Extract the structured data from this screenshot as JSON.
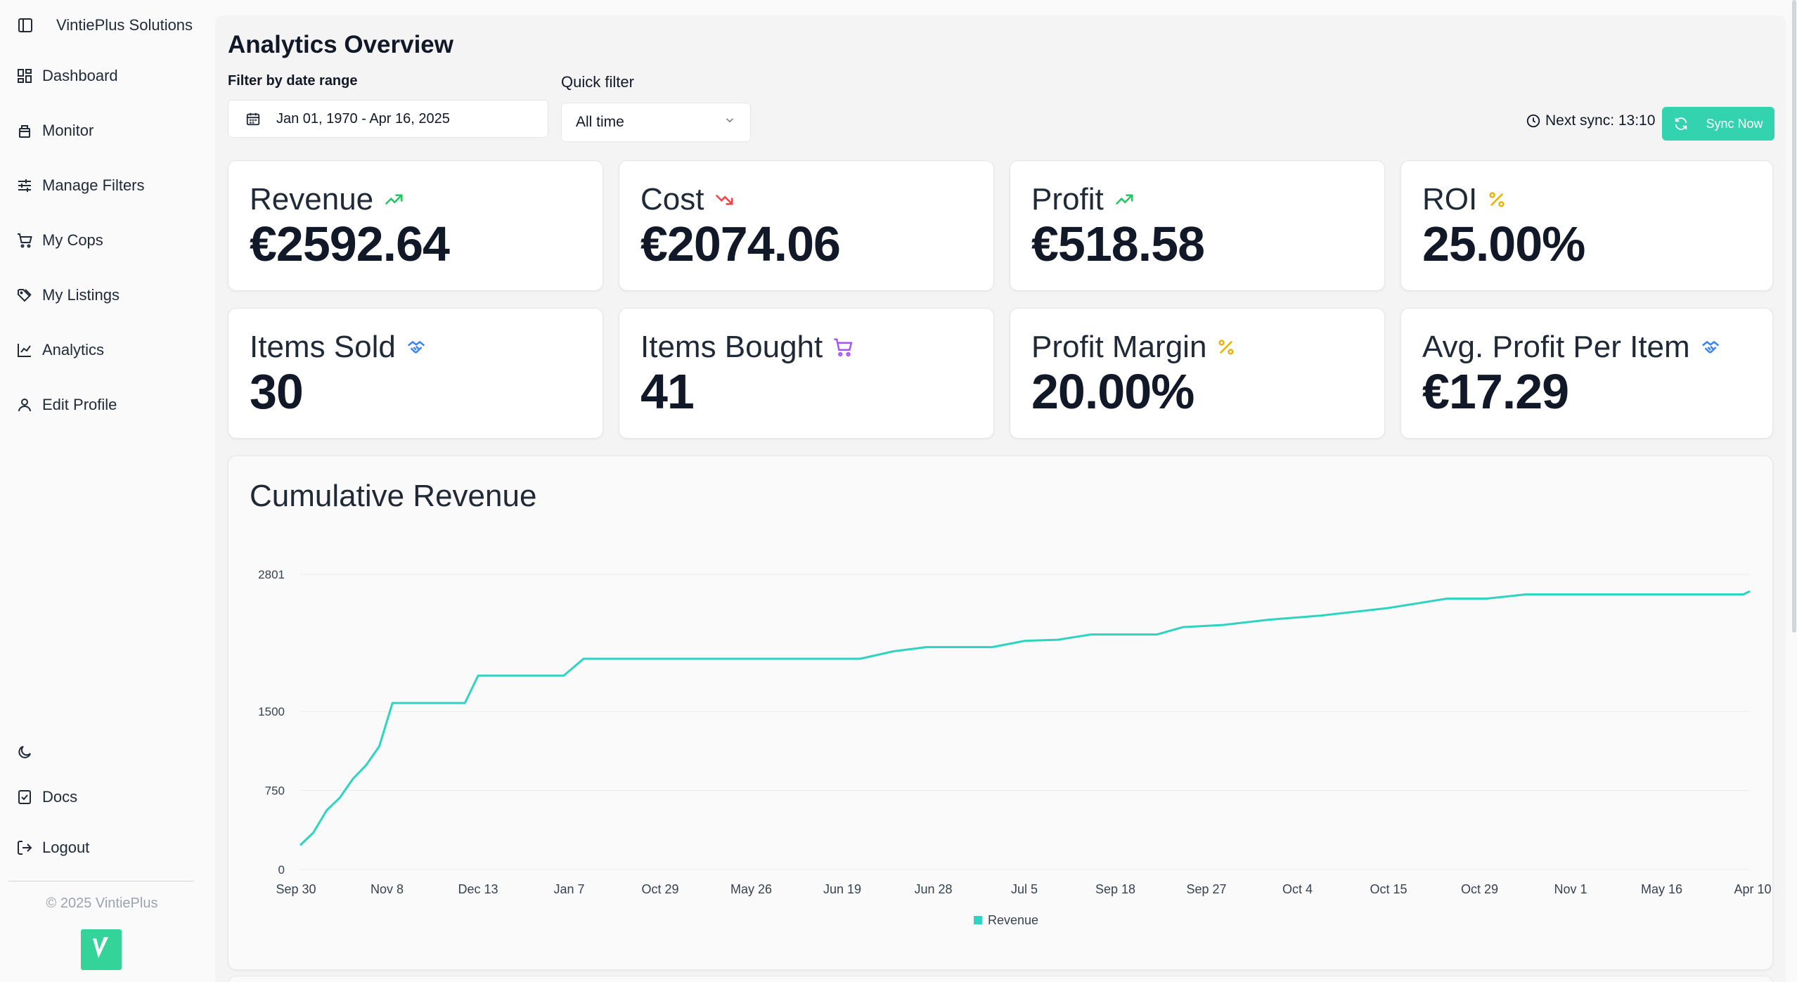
{
  "brand": {
    "name": "VintiePlus Solutions"
  },
  "nav": {
    "items": [
      {
        "label": "Dashboard"
      },
      {
        "label": "Monitor"
      },
      {
        "label": "Manage Filters"
      },
      {
        "label": "My Cops"
      },
      {
        "label": "My Listings"
      },
      {
        "label": "Analytics"
      },
      {
        "label": "Edit Profile"
      }
    ],
    "docs_label": "Docs",
    "logout_label": "Logout"
  },
  "footer": {
    "copyright": "© 2025 VintiePlus"
  },
  "header": {
    "title": "Analytics Overview",
    "date_filter_label": "Filter by date range",
    "date_range": "Jan 01, 1970 - Apr 16, 2025",
    "quick_filter_label": "Quick filter",
    "quick_filter_value": "All time",
    "next_sync": "Next sync: 13:10",
    "sync_button": "Sync Now"
  },
  "stats": [
    {
      "label": "Revenue",
      "value": "€2592.64",
      "icon": "trending-up-icon",
      "color": "#22c55e"
    },
    {
      "label": "Cost",
      "value": "€2074.06",
      "icon": "trending-down-icon",
      "color": "#ef4444"
    },
    {
      "label": "Profit",
      "value": "€518.58",
      "icon": "trending-up-icon",
      "color": "#22c55e"
    },
    {
      "label": "ROI",
      "value": "25.00%",
      "icon": "percent-icon",
      "color": "#eab308"
    },
    {
      "label": "Items Sold",
      "value": "30",
      "icon": "handshake-icon",
      "color": "#3b82f6"
    },
    {
      "label": "Items Bought",
      "value": "41",
      "icon": "cart-icon",
      "color": "#a855f7"
    },
    {
      "label": "Profit Margin",
      "value": "20.00%",
      "icon": "percent-icon",
      "color": "#eab308"
    },
    {
      "label": "Avg. Profit Per Item",
      "value": "€17.29",
      "icon": "handshake-icon",
      "color": "#3b82f6"
    }
  ],
  "chart_data": {
    "type": "line",
    "title": "Cumulative Revenue",
    "yticks": [
      0,
      750,
      1500,
      2801
    ],
    "ylim": [
      0,
      2801
    ],
    "categories": [
      "Sep 30",
      "Nov 8",
      "Dec 13",
      "Jan 7",
      "Oct 29",
      "May 26",
      "Jun 19",
      "Jun 28",
      "Jul 5",
      "Sep 18",
      "Sep 27",
      "Oct 4",
      "Oct 15",
      "Oct 29",
      "Nov 1",
      "May 16",
      "Apr 10"
    ],
    "series": [
      {
        "name": "Revenue",
        "color": "#2dd4bf",
        "points": [
          [
            0,
            230
          ],
          [
            0.2,
            350
          ],
          [
            0.4,
            560
          ],
          [
            0.6,
            680
          ],
          [
            0.8,
            860
          ],
          [
            1.0,
            990
          ],
          [
            1.2,
            1170
          ],
          [
            1.4,
            1580
          ],
          [
            2.5,
            1580
          ],
          [
            2.7,
            1840
          ],
          [
            4.0,
            1840
          ],
          [
            4.3,
            2000
          ],
          [
            6.0,
            2000
          ],
          [
            8.5,
            2000
          ],
          [
            9.0,
            2070
          ],
          [
            9.5,
            2110
          ],
          [
            10.5,
            2110
          ],
          [
            11.0,
            2170
          ],
          [
            11.5,
            2180
          ],
          [
            12.0,
            2230
          ],
          [
            13.0,
            2230
          ],
          [
            13.4,
            2300
          ],
          [
            14.0,
            2320
          ],
          [
            14.7,
            2370
          ],
          [
            15.5,
            2410
          ],
          [
            16.5,
            2480
          ],
          [
            17.4,
            2570
          ],
          [
            18.0,
            2570
          ],
          [
            18.6,
            2610
          ],
          [
            19.5,
            2610
          ],
          [
            20.5,
            2610
          ],
          [
            21.9,
            2610
          ],
          [
            22.0,
            2640
          ]
        ]
      }
    ],
    "legend": "bottom-center"
  }
}
